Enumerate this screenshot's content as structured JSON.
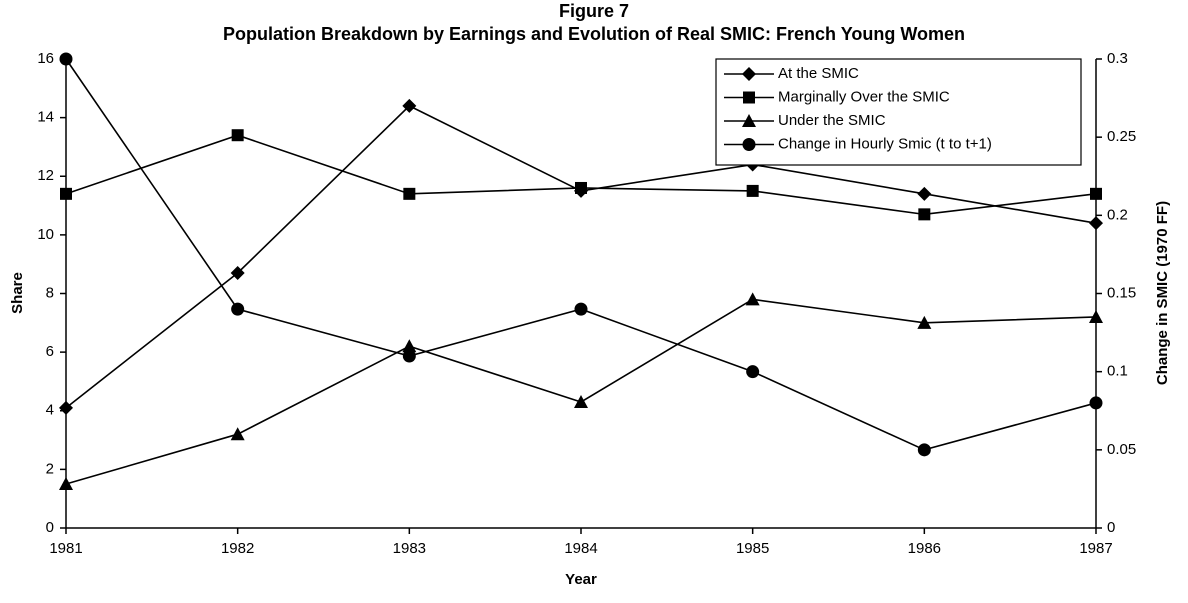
{
  "chart_data": {
    "type": "line",
    "title": "Figure 7",
    "subtitle": "Population Breakdown by Earnings and Evolution of Real SMIC:  French Young Women",
    "x_label": "Year",
    "y_label": "Share",
    "y2_label": "Change in SMIC (1970 FF)",
    "x": [
      1981,
      1982,
      1983,
      1984,
      1985,
      1986,
      1987
    ],
    "xlim": [
      1981,
      1987
    ],
    "xticks": [
      1981,
      1982,
      1983,
      1984,
      1985,
      1986,
      1987
    ],
    "ylim": [
      0,
      16
    ],
    "yticks": [
      0,
      2,
      4,
      6,
      8,
      10,
      12,
      14,
      16
    ],
    "y2lim": [
      0,
      0.3
    ],
    "y2ticks": [
      0,
      0.05,
      0.1,
      0.15,
      0.2,
      0.25,
      0.3
    ],
    "grid": false,
    "legend": "upper right",
    "series": [
      {
        "name": "At the SMIC",
        "color": "#000000",
        "marker": "diamond",
        "values": [
          4.1,
          8.7,
          14.4,
          11.5,
          12.4,
          11.4,
          10.4
        ]
      },
      {
        "name": "Marginally Over the SMIC",
        "color": "#000000",
        "marker": "square",
        "values": [
          11.4,
          13.4,
          11.4,
          11.6,
          11.5,
          10.7,
          11.4
        ]
      },
      {
        "name": "Under the SMIC",
        "color": "#000000",
        "marker": "triangle",
        "values": [
          1.5,
          3.2,
          6.2,
          4.3,
          7.8,
          7.0,
          7.2
        ]
      },
      {
        "name": "Change in Hourly Smic (t to t+1)",
        "color": "#000000",
        "marker": "circle",
        "axis": "y2",
        "values": [
          0.3,
          0.14,
          0.11,
          0.14,
          0.1,
          0.05,
          0.08
        ]
      }
    ]
  }
}
